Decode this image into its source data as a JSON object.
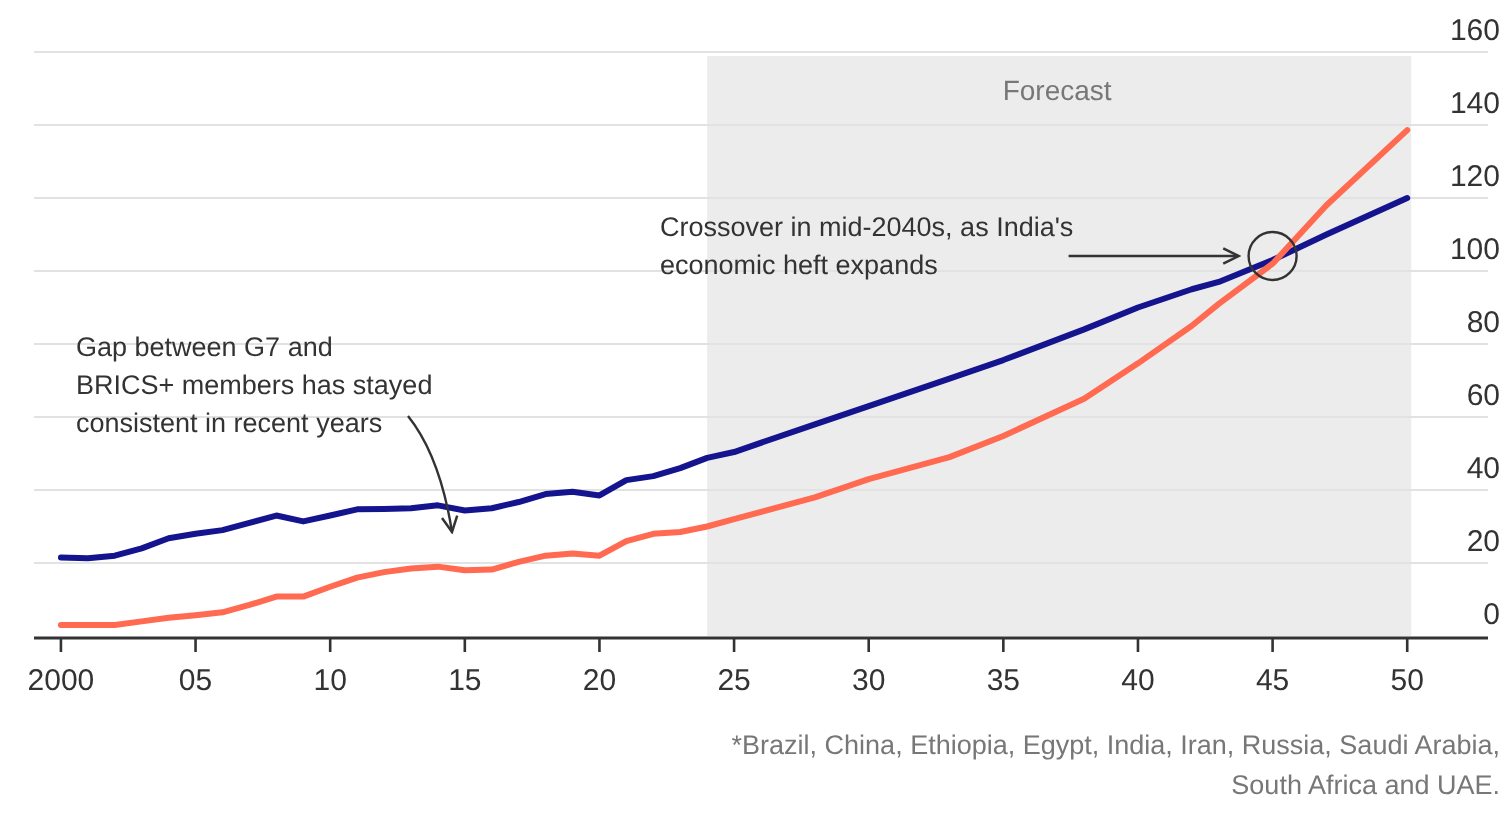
{
  "chart_data": {
    "type": "line",
    "x": [
      2000,
      2001,
      2002,
      2003,
      2004,
      2005,
      2006,
      2007,
      2008,
      2009,
      2010,
      2011,
      2012,
      2013,
      2014,
      2015,
      2016,
      2017,
      2018,
      2019,
      2020,
      2021,
      2022,
      2023,
      2024,
      2025,
      2028,
      2030,
      2033,
      2035,
      2038,
      2040,
      2042,
      2043,
      2045,
      2047,
      2050
    ],
    "series": [
      {
        "color": "#15148f",
        "values": [
          21.5,
          21.3,
          22,
          24,
          26.8,
          28,
          29,
          31,
          33,
          31.4,
          33,
          34.7,
          34.8,
          35,
          35.8,
          34.4,
          35,
          36.7,
          38.9,
          39.5,
          38.5,
          42.7,
          43.8,
          46,
          48.8,
          50.4,
          58,
          63,
          70.5,
          75.6,
          84,
          90,
          95,
          97,
          103,
          110,
          120
        ]
      },
      {
        "color": "#ff6a50",
        "values": [
          3,
          3,
          3,
          4,
          5,
          5.7,
          6.5,
          8.5,
          10.8,
          10.8,
          13.5,
          16,
          17.5,
          18.5,
          19,
          18,
          18.2,
          20.3,
          22,
          22.6,
          22,
          26,
          28,
          28.5,
          30,
          32,
          38,
          43,
          49,
          54.8,
          65,
          74.7,
          85,
          91,
          102,
          118,
          138.6
        ]
      }
    ],
    "xlim": [
      1999,
      2053
    ],
    "xticks": [
      2000,
      {
        "value": 2005,
        "label": "05"
      },
      {
        "value": 2010,
        "label": "10"
      },
      {
        "value": 2015,
        "label": "15"
      },
      {
        "value": 2020,
        "label": "20"
      },
      {
        "value": 2025,
        "label": "25"
      },
      {
        "value": 2030,
        "label": "30"
      },
      {
        "value": 2035,
        "label": "35"
      },
      {
        "value": 2040,
        "label": "40"
      },
      {
        "value": 2045,
        "label": "45"
      },
      {
        "value": 2050,
        "label": "50"
      }
    ],
    "ylim": [
      0,
      160
    ],
    "yticks": [
      0,
      20,
      40,
      60,
      80,
      100,
      120,
      140,
      160
    ],
    "grid": "y",
    "bands": [
      {
        "axis": "x",
        "from": 2024,
        "to": 2050,
        "label": "Forecast",
        "color": "#ececec"
      }
    ],
    "annotations": [
      "Gap between G7 and\nBRICS+ members has stayed\nconsistent in recent years",
      "Crossover in mid-2040s, as India's\neconomic heft expands",
      "*Brazil, China, Ethiopia, Egypt, India, Iran, Russia, Saudi Arabia,\nSouth Africa and UAE."
    ]
  }
}
